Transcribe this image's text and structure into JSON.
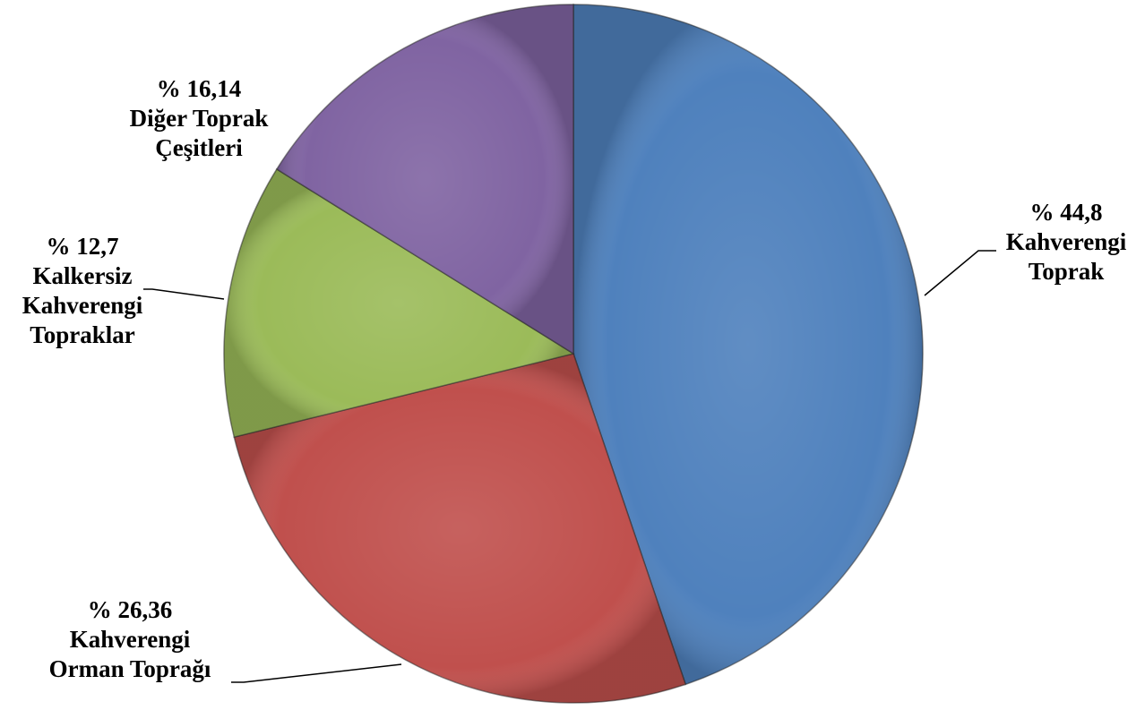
{
  "chart_data": {
    "type": "pie",
    "start_angle_deg": 0,
    "direction": "clockwise",
    "slices": [
      {
        "percent_label": "% 44,8",
        "name_lines": [
          "Kahverengi",
          "Toprak"
        ],
        "value": 44.8,
        "color": "#4F81BD"
      },
      {
        "percent_label": "% 26,36",
        "name_lines": [
          "Kahverengi",
          "Orman Toprağı"
        ],
        "value": 26.36,
        "color": "#C0504D"
      },
      {
        "percent_label": "% 12,7",
        "name_lines": [
          "Kalkersiz",
          "Kahverengi",
          "Topraklar"
        ],
        "value": 12.7,
        "color": "#9BBB59"
      },
      {
        "percent_label": "% 16,14",
        "name_lines": [
          "Diğer Toprak",
          "Çeşitleri"
        ],
        "value": 16.14,
        "color": "#8064A2"
      }
    ]
  }
}
